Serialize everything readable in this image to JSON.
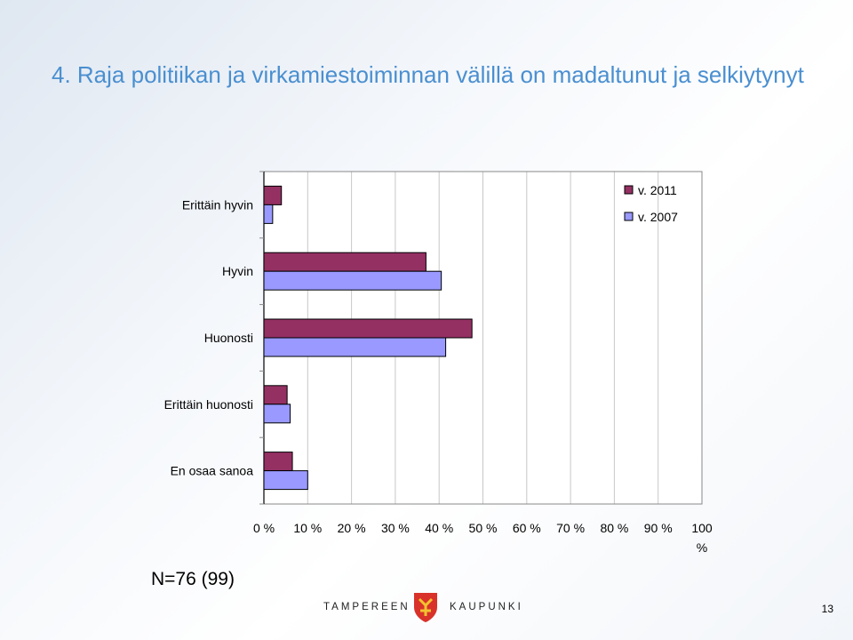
{
  "slide": {
    "title": "4. Raja politiikan ja virkamiestoiminnan välillä on madaltunut ja selkiytynyt",
    "sample_note": "N=76 (99)",
    "footer_left": "TAMPEREEN",
    "footer_right": "KAUPUNKI",
    "page_number": "13"
  },
  "colors": {
    "series_2011": "#953063",
    "series_2007": "#9999ff",
    "title": "#4a8fd0",
    "crest_shield": "#d8322a",
    "crest_inner": "#f2c230"
  },
  "chart_data": {
    "type": "bar",
    "orientation": "horizontal",
    "categories": [
      "Erittäin hyvin",
      "Hyvin",
      "Huonosti",
      "Erittäin huonosti",
      "En osaa sanoa"
    ],
    "series": [
      {
        "name": "v. 2011",
        "values": [
          4,
          37,
          47.5,
          5.3,
          6.5
        ]
      },
      {
        "name": "v. 2007",
        "values": [
          2,
          40.5,
          41.5,
          6,
          10
        ]
      }
    ],
    "x_ticks": [
      "0 %",
      "10 %",
      "20 %",
      "30 %",
      "40 %",
      "50 %",
      "60 %",
      "70 %",
      "80 %",
      "90 %",
      "100 %"
    ],
    "xlim": [
      0,
      100
    ],
    "grid": true,
    "legend_position": "top-right"
  }
}
